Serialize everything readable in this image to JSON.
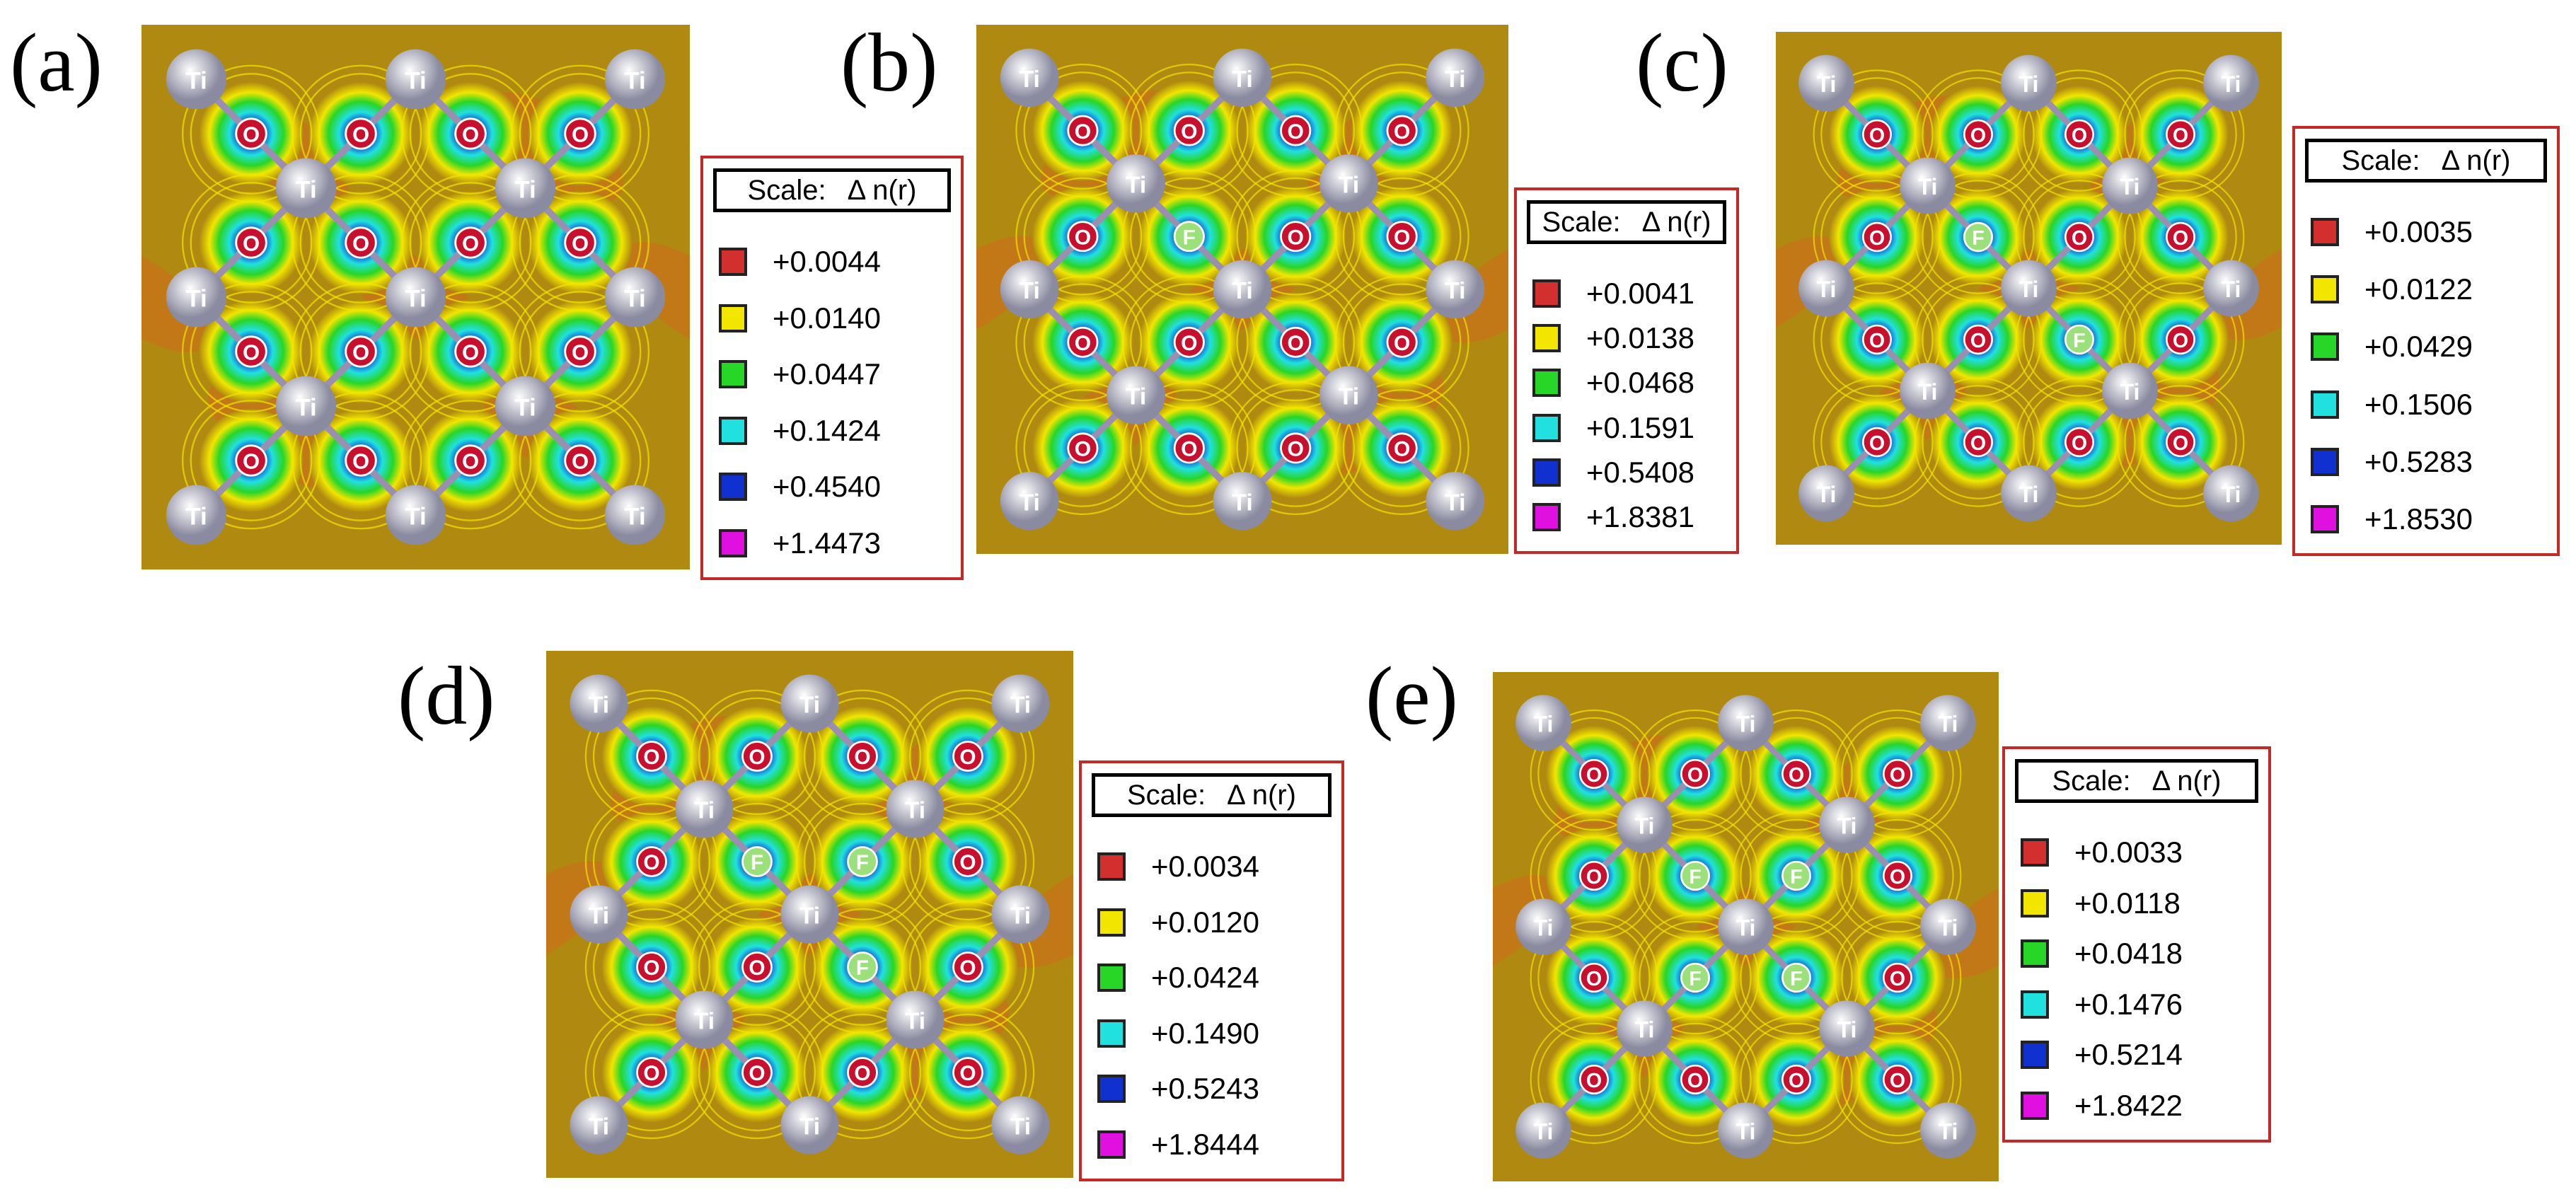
{
  "colors": {
    "palette": [
      "#d32f2f",
      "#f2e600",
      "#27d627",
      "#21e0e0",
      "#1030d0",
      "#e010e0"
    ],
    "background_field": "#b08a10",
    "legend_border": "#c62828"
  },
  "panels": [
    {
      "id": "a",
      "label": "(a)",
      "scale_title": "Scale:",
      "scale_symbol": "Δ n(r)",
      "values": [
        "+0.0044",
        "+0.0140",
        "+0.0447",
        "+0.1424",
        "+0.4540",
        "+1.4473"
      ],
      "doped": false
    },
    {
      "id": "b",
      "label": "(b)",
      "scale_title": "Scale:",
      "scale_symbol": "Δ n(r)",
      "values": [
        "+0.0041",
        "+0.0138",
        "+0.0468",
        "+0.1591",
        "+0.5408",
        "+1.8381"
      ],
      "doped": true,
      "f_count": 1
    },
    {
      "id": "c",
      "label": "(c)",
      "scale_title": "Scale:",
      "scale_symbol": "Δ n(r)",
      "values": [
        "+0.0035",
        "+0.0122",
        "+0.0429",
        "+0.1506",
        "+0.5283",
        "+1.8530"
      ],
      "doped": true,
      "f_count": 2
    },
    {
      "id": "d",
      "label": "(d)",
      "scale_title": "Scale:",
      "scale_symbol": "Δ n(r)",
      "values": [
        "+0.0034",
        "+0.0120",
        "+0.0424",
        "+0.1490",
        "+0.5243",
        "+1.8444"
      ],
      "doped": true,
      "f_count": 3
    },
    {
      "id": "e",
      "label": "(e)",
      "scale_title": "Scale:",
      "scale_symbol": "Δ n(r)",
      "values": [
        "+0.0033",
        "+0.0118",
        "+0.0418",
        "+0.1476",
        "+0.5214",
        "+1.8422"
      ],
      "doped": true,
      "f_count": 4
    }
  ],
  "atoms": {
    "ti": "Ti",
    "o": "O",
    "f": "F"
  }
}
